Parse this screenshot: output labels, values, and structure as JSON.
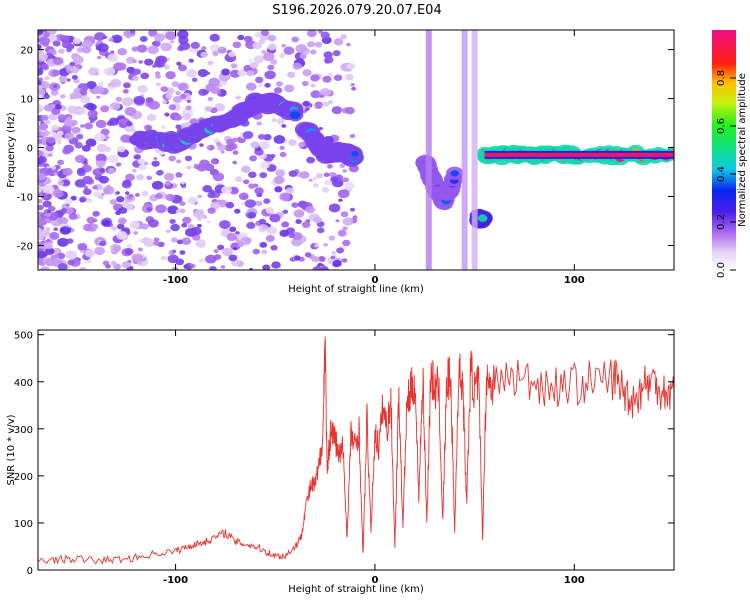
{
  "title": "S196.2026.079.20.07.E04",
  "colors": {
    "snr_line": "#e8322d",
    "axis": "#000000",
    "background": "#ffffff"
  },
  "chart_data": [
    {
      "type": "heatmap",
      "name": "spectrogram",
      "xlabel": "Height of straight line (km)",
      "ylabel": "Frequency (Hz)",
      "xlim": [
        -169,
        150
      ],
      "ylim": [
        -25,
        24
      ],
      "xticks": [
        -100,
        0,
        100
      ],
      "xtick_labels": [
        "-100",
        "0",
        "100"
      ],
      "yticks": [
        -20,
        -10,
        0,
        10,
        20
      ],
      "ytick_labels": [
        "-20",
        "-10",
        "0",
        "10",
        "20"
      ],
      "colorbar": {
        "label": "Normalized spectral amplitude",
        "range": [
          0,
          1
        ],
        "ticks": [
          0,
          0.2,
          0.4,
          0.6,
          0.8
        ],
        "tick_labels": [
          "0.0",
          "0.2",
          "0.4",
          "0.6",
          "0.8"
        ]
      },
      "features": [
        {
          "label": "rising noise band",
          "x": [
            -120,
            -100,
            -85,
            -70,
            -60,
            -50,
            -40
          ],
          "y": [
            2,
            1,
            4,
            6,
            9,
            9,
            7
          ],
          "amplitude": 0.4
        },
        {
          "label": "descending segment",
          "x": [
            -35,
            -25,
            -15,
            -10
          ],
          "y": [
            4,
            -1,
            -1,
            -2
          ],
          "amplitude": 0.4
        },
        {
          "label": "narrow line",
          "x": [
            55,
            80,
            100,
            150
          ],
          "y": [
            -1.5,
            -1.5,
            -1.5,
            -1.5
          ],
          "amplitude": 0.95
        },
        {
          "label": "deep trough",
          "x": [
            25,
            30,
            35,
            40
          ],
          "y": [
            -3,
            -8,
            -11,
            -6
          ],
          "amplitude": 0.35
        },
        {
          "label": "short burst",
          "x": [
            52,
            54
          ],
          "y": [
            -14.5,
            -14.5
          ],
          "amplitude": 0.5
        }
      ]
    },
    {
      "type": "line",
      "name": "snr",
      "xlabel": "Height of straight line (km)",
      "ylabel": "SNR (10 * v/v)",
      "xlim": [
        -169,
        150
      ],
      "ylim": [
        0,
        510
      ],
      "xticks": [
        -100,
        0,
        100
      ],
      "xtick_labels": [
        "-100",
        "0",
        "100"
      ],
      "yticks": [
        0,
        100,
        200,
        300,
        400,
        500
      ],
      "ytick_labels": [
        "0",
        "100",
        "200",
        "300",
        "400",
        "500"
      ],
      "series": [
        {
          "name": "SNR",
          "x": [
            -169,
            -160,
            -150,
            -140,
            -130,
            -120,
            -110,
            -100,
            -95,
            -90,
            -85,
            -80,
            -75,
            -70,
            -65,
            -60,
            -55,
            -50,
            -45,
            -40,
            -37,
            -35,
            -32,
            -30,
            -28,
            -26,
            -25,
            -24,
            -23,
            -22,
            -20,
            -18,
            -16,
            -14,
            -12,
            -10,
            -8,
            -6,
            -4,
            -2,
            0,
            2,
            4,
            6,
            8,
            10,
            12,
            14,
            16,
            18,
            20,
            22,
            24,
            26,
            28,
            30,
            32,
            34,
            36,
            38,
            40,
            42,
            44,
            46,
            48,
            50,
            52,
            54,
            56,
            58,
            60,
            70,
            80,
            90,
            100,
            110,
            120,
            125,
            130,
            135,
            140,
            145,
            150
          ],
          "values": [
            20,
            22,
            24,
            20,
            22,
            26,
            35,
            40,
            48,
            55,
            60,
            70,
            80,
            60,
            55,
            50,
            40,
            30,
            30,
            50,
            70,
            130,
            180,
            180,
            220,
            300,
            510,
            200,
            260,
            300,
            280,
            240,
            260,
            70,
            290,
            260,
            300,
            30,
            320,
            80,
            290,
            260,
            350,
            300,
            360,
            50,
            380,
            90,
            350,
            380,
            400,
            160,
            410,
            100,
            420,
            380,
            390,
            100,
            400,
            410,
            80,
            420,
            400,
            140,
            430,
            380,
            400,
            70,
            420,
            390,
            400,
            410,
            400,
            390,
            395,
            400,
            410,
            380,
            360,
            395,
            400,
            380,
            380
          ]
        }
      ]
    }
  ]
}
